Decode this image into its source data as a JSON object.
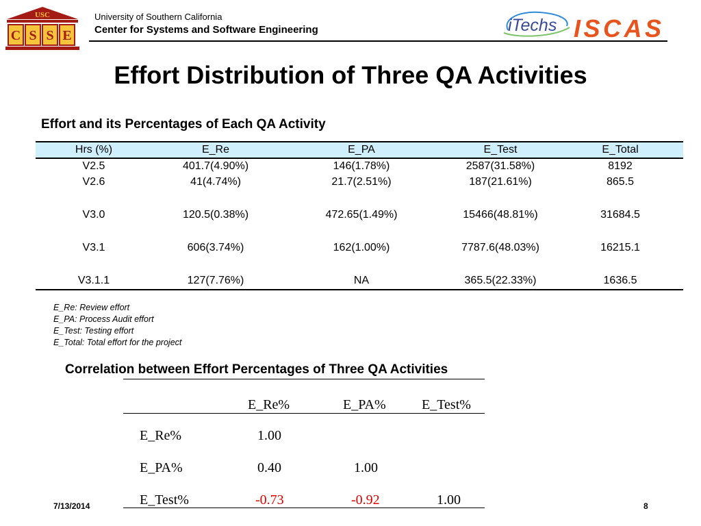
{
  "header": {
    "logo_usc_text": "USC",
    "logo_csse_letters": [
      "C",
      "S",
      "S",
      "E"
    ],
    "university": "University of Southern California",
    "center": "Center for Systems and Software Engineering",
    "logo_itechs_text": "iTechs",
    "logo_iscas_text": "ISCAS"
  },
  "title": "Effort Distribution of Three QA Activities",
  "effort_table": {
    "title": "Effort and its Percentages of Each QA Activity",
    "headers": [
      "Hrs (%)",
      "E_Re",
      "E_PA",
      "E_Test",
      "E_Total"
    ],
    "rows": [
      [
        "V2.5",
        "401.7(4.90%)",
        "146(1.78%)",
        "2587(31.58%)",
        "8192"
      ],
      [
        "V2.6",
        "41(4.74%)",
        "21.7(2.51%)",
        "187(21.61%)",
        "865.5"
      ],
      [
        "V3.0",
        "120.5(0.38%)",
        "472.65(1.49%)",
        "15466(48.81%)",
        "31684.5"
      ],
      [
        "V3.1",
        "606(3.74%)",
        "162(1.00%)",
        "7787.6(48.03%)",
        "16215.1"
      ],
      [
        "V3.1.1",
        "127(7.76%)",
        "NA",
        "365.5(22.33%)",
        "1636.5"
      ]
    ]
  },
  "notes": [
    "E_Re: Review effort",
    "E_PA: Process Audit effort",
    "E_Test: Testing effort",
    "E_Total: Total effort for the project"
  ],
  "correlation_table": {
    "title": "Correlation between Effort  Percentages of Three QA Activities",
    "col_headers": [
      "E_Re%",
      "E_PA%",
      "E_Test%"
    ],
    "rows": [
      {
        "label": "E_Re%",
        "values": [
          "1.00",
          "",
          ""
        ]
      },
      {
        "label": "E_PA%",
        "values": [
          "0.40",
          "1.00",
          ""
        ]
      },
      {
        "label": "E_Test%",
        "values": [
          "-0.73",
          "-0.92",
          "1.00"
        ]
      }
    ],
    "negative_color": "#e00000"
  },
  "footer": {
    "date": "7/13/2014",
    "page": "8"
  }
}
